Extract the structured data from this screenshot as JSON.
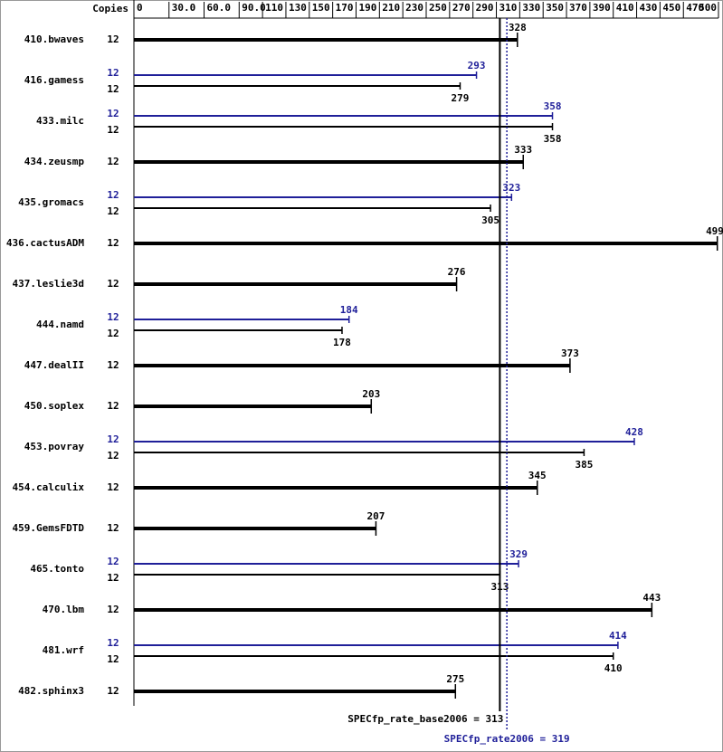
{
  "chart_data": {
    "type": "bar",
    "orientation": "horizontal",
    "copies_header": "Copies",
    "categories": [
      "410.bwaves",
      "416.gamess",
      "433.milc",
      "434.zeusmp",
      "435.gromacs",
      "436.cactusADM",
      "437.leslie3d",
      "444.namd",
      "447.dealII",
      "450.soplex",
      "453.povray",
      "454.calculix",
      "459.GemsFDTD",
      "465.tonto",
      "470.lbm",
      "481.wrf",
      "482.sphinx3"
    ],
    "series": [
      {
        "color": "#000000",
        "copies": [
          12,
          12,
          12,
          12,
          12,
          12,
          12,
          12,
          12,
          12,
          12,
          12,
          12,
          12,
          12,
          12,
          12
        ],
        "values": [
          328,
          279,
          358,
          333,
          305,
          499,
          276,
          178,
          373,
          203,
          385,
          345,
          207,
          313,
          443,
          410,
          275
        ]
      },
      {
        "color": "#1f1f99",
        "copies": [
          null,
          12,
          12,
          null,
          12,
          null,
          null,
          12,
          null,
          null,
          12,
          null,
          null,
          12,
          null,
          12,
          null
        ],
        "values": [
          null,
          293,
          358,
          null,
          323,
          null,
          null,
          184,
          null,
          null,
          428,
          null,
          null,
          329,
          null,
          414,
          null
        ]
      }
    ],
    "xlim": [
      0,
      500
    ],
    "xticks": [
      0,
      {
        "value": 30,
        "label": "30.0"
      },
      {
        "value": 60,
        "label": "60.0"
      },
      {
        "value": 90,
        "label": "90.0"
      },
      110,
      130,
      150,
      170,
      190,
      210,
      230,
      250,
      270,
      290,
      310,
      330,
      350,
      370,
      390,
      410,
      430,
      450,
      470,
      500
    ],
    "reference_lines": [
      {
        "label": "SPECfp_rate_base2006 = 313",
        "value": 313,
        "color": "#000000",
        "dashed": false
      },
      {
        "label": "SPECfp_rate2006 = 319",
        "value": 319,
        "color": "#1f1f99",
        "dashed": true
      }
    ]
  }
}
